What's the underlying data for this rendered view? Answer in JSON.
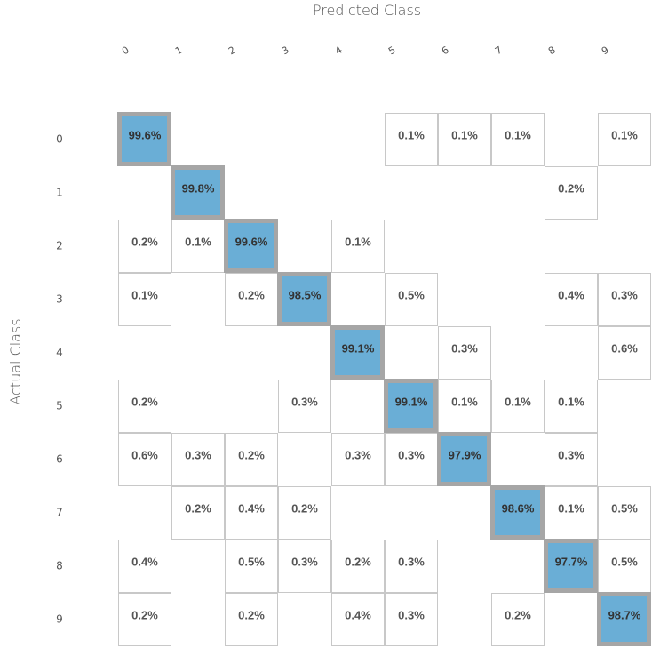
{
  "chart_data": {
    "type": "heatmap",
    "xlabel": "Predicted Class",
    "ylabel": "Actual Class",
    "x_categories": [
      "0",
      "1",
      "2",
      "3",
      "4",
      "5",
      "6",
      "7",
      "8",
      "9"
    ],
    "y_categories": [
      "0",
      "1",
      "2",
      "3",
      "4",
      "5",
      "6",
      "7",
      "8",
      "9"
    ],
    "value_suffix": "%",
    "values": [
      [
        99.6,
        null,
        null,
        null,
        null,
        0.1,
        0.1,
        0.1,
        null,
        0.1
      ],
      [
        null,
        99.8,
        null,
        null,
        null,
        null,
        null,
        null,
        0.2,
        null
      ],
      [
        0.2,
        0.1,
        99.6,
        null,
        0.1,
        null,
        null,
        null,
        null,
        null
      ],
      [
        0.1,
        null,
        0.2,
        98.5,
        null,
        0.5,
        null,
        null,
        0.4,
        0.3
      ],
      [
        null,
        null,
        null,
        null,
        99.1,
        null,
        0.3,
        null,
        null,
        0.6
      ],
      [
        0.2,
        null,
        null,
        0.3,
        null,
        99.1,
        0.1,
        0.1,
        0.1,
        null
      ],
      [
        0.6,
        0.3,
        0.2,
        null,
        0.3,
        0.3,
        97.9,
        null,
        0.3,
        null
      ],
      [
        null,
        0.2,
        0.4,
        0.2,
        null,
        null,
        null,
        98.6,
        0.1,
        0.5
      ],
      [
        0.4,
        null,
        0.5,
        0.3,
        0.2,
        0.3,
        null,
        null,
        97.7,
        0.5
      ],
      [
        0.2,
        null,
        0.2,
        null,
        0.4,
        0.3,
        null,
        0.2,
        null,
        98.7
      ]
    ],
    "colors": {
      "diagonal_fill": "#6aaed6",
      "diagonal_border": "#a6a6a6",
      "cell_border": "#c8c8c8",
      "text": "#555555"
    }
  }
}
